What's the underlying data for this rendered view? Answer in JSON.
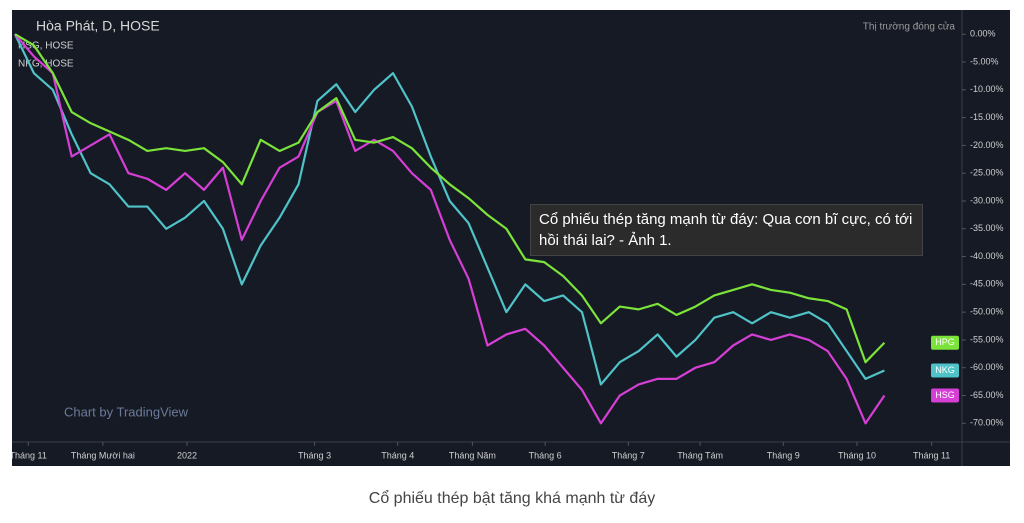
{
  "chart_data": {
    "type": "line",
    "title": "Hòa Phát, D, HOSE",
    "overlays": [
      "HSG, HOSE",
      "NKG, HOSE"
    ],
    "status": "Thị trường đóng cửa",
    "watermark": "Chart by TradingView",
    "x": [
      0,
      2,
      4,
      6,
      8,
      10,
      12,
      14,
      16,
      18,
      20,
      22,
      24,
      26,
      28,
      30,
      32,
      34,
      36,
      38,
      40,
      42,
      44,
      46,
      48,
      50,
      52,
      54,
      56,
      58,
      60,
      62,
      64,
      66,
      68,
      70,
      72,
      74,
      76,
      78,
      80,
      82,
      84,
      86,
      88,
      90,
      92
    ],
    "xlim": [
      0,
      100
    ],
    "xticks": [
      {
        "value": 1.4,
        "label": "Tháng 11"
      },
      {
        "value": 9.3,
        "label": "Tháng Mười hai"
      },
      {
        "value": 18.2,
        "label": "2022"
      },
      {
        "value": 31.7,
        "label": "Tháng 3"
      },
      {
        "value": 40.5,
        "label": "Tháng 4"
      },
      {
        "value": 48.4,
        "label": "Tháng Năm"
      },
      {
        "value": 56.1,
        "label": "Tháng 6"
      },
      {
        "value": 64.9,
        "label": "Tháng 7"
      },
      {
        "value": 72.5,
        "label": "Tháng Tám"
      },
      {
        "value": 81.3,
        "label": "Tháng 9"
      },
      {
        "value": 89.1,
        "label": "Tháng 10"
      },
      {
        "value": 97.0,
        "label": "Tháng 11"
      }
    ],
    "ylim": [
      -73,
      4
    ],
    "yticks": [
      {
        "value": 0,
        "label": "0.00%"
      },
      {
        "value": -5,
        "label": "-5.00%"
      },
      {
        "value": -10,
        "label": "-10.00%"
      },
      {
        "value": -15,
        "label": "-15.00%"
      },
      {
        "value": -20,
        "label": "-20.00%"
      },
      {
        "value": -25,
        "label": "-25.00%"
      },
      {
        "value": -30,
        "label": "-30.00%"
      },
      {
        "value": -35,
        "label": "-35.00%"
      },
      {
        "value": -40,
        "label": "-40.00%"
      },
      {
        "value": -45,
        "label": "-45.00%"
      },
      {
        "value": -50,
        "label": "-50.00%"
      },
      {
        "value": -55,
        "label": "-55.00%"
      },
      {
        "value": -60,
        "label": "-60.00%"
      },
      {
        "value": -65,
        "label": "-65.00%"
      },
      {
        "value": -70,
        "label": "-70.00%"
      }
    ],
    "grid": false,
    "series": [
      {
        "name": "HPG",
        "color": "#7be33a",
        "values": [
          0,
          -2,
          -7,
          -14,
          -16,
          -17.5,
          -19,
          -21,
          -20.5,
          -21,
          -20.5,
          -23,
          -27,
          -19,
          -21,
          -19.5,
          -14,
          -11.5,
          -19,
          -19.5,
          -18.5,
          -20.5,
          -24,
          -27,
          -29.5,
          -32.5,
          -35,
          -40.5,
          -41,
          -43.5,
          -47,
          -52,
          -49,
          -49.5,
          -48.5,
          -50.5,
          -49,
          -47,
          -46,
          -45,
          -46,
          -46.5,
          -47.5,
          -48,
          -49.5,
          -59,
          -55.5
        ]
      },
      {
        "name": "NKG",
        "color": "#4fc3c8",
        "values": [
          0,
          -7,
          -10,
          -18,
          -25,
          -27,
          -31,
          -31,
          -35,
          -33,
          -30,
          -35,
          -45,
          -38,
          -33,
          -27,
          -12,
          -9,
          -14,
          -10,
          -7,
          -13,
          -22,
          -30,
          -34,
          -42,
          -50,
          -45,
          -48,
          -47,
          -50,
          -63,
          -59,
          -57,
          -54,
          -58,
          -55,
          -51,
          -50,
          -52,
          -50,
          -51,
          -50,
          -52,
          -57,
          -62,
          -60.5
        ]
      },
      {
        "name": "HSG",
        "color": "#d63fd6",
        "values": [
          0,
          -4,
          -7,
          -22,
          -20,
          -18,
          -25,
          -26,
          -28,
          -25,
          -28,
          -24,
          -37,
          -30,
          -24,
          -22,
          -14,
          -12,
          -21,
          -19,
          -21,
          -25,
          -28,
          -37,
          -44,
          -56,
          -54,
          -53,
          -56,
          -60,
          -64,
          -70,
          -65,
          -63,
          -62,
          -62,
          -60,
          -59,
          -56,
          -54,
          -55,
          -54,
          -55,
          -57,
          -62,
          -70,
          -65
        ]
      }
    ]
  },
  "tooltip": "Cổ phiếu thép tăng mạnh từ đáy: Qua cơn bĩ cực, có tới hồi thái lai? - Ảnh 1.",
  "caption": "Cổ phiếu thép bật tăng khá mạnh từ đáy"
}
